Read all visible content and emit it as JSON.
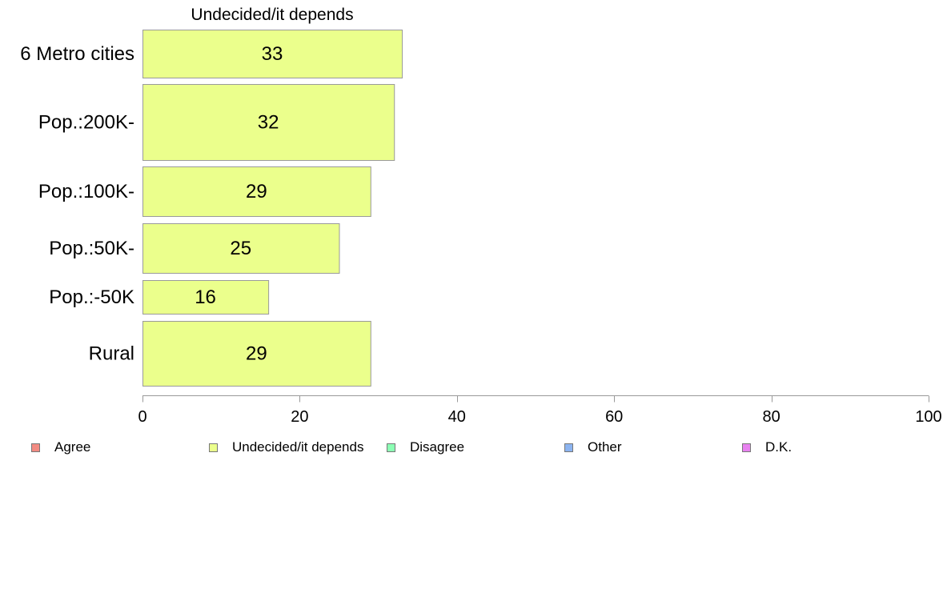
{
  "chart_data": {
    "type": "bar",
    "orientation": "horizontal",
    "title": "Undecided/it depends",
    "categories": [
      "6 Metro cities",
      "Pop.:200K-",
      "Pop.:100K-",
      "Pop.:50K-",
      "Pop.:-50K",
      "Rural"
    ],
    "series": [
      {
        "name": "Undecided/it depends",
        "values": [
          33,
          32,
          29,
          25,
          16,
          29
        ]
      }
    ],
    "value_labels": [
      "33",
      "32",
      "29",
      "25",
      "16",
      "29"
    ],
    "xlim": [
      0,
      100
    ],
    "xticks": [
      0,
      20,
      40,
      60,
      80,
      100
    ],
    "xtick_labels": [
      "0",
      "20",
      "40",
      "60",
      "80",
      "100"
    ],
    "xlabel": "",
    "ylabel": "",
    "grid": false,
    "bar_color": "#ebff8c",
    "bar_edge_color": "#9a9a9a",
    "legend_position": "bottom",
    "legend": [
      {
        "label": "Agree",
        "color": "#f28b82"
      },
      {
        "label": "Undecided/it depends",
        "color": "#ebff8c"
      },
      {
        "label": "Disagree",
        "color": "#8cffb4"
      },
      {
        "label": "Other",
        "color": "#8cb4f0"
      },
      {
        "label": "D.K.",
        "color": "#e882f0"
      }
    ]
  }
}
